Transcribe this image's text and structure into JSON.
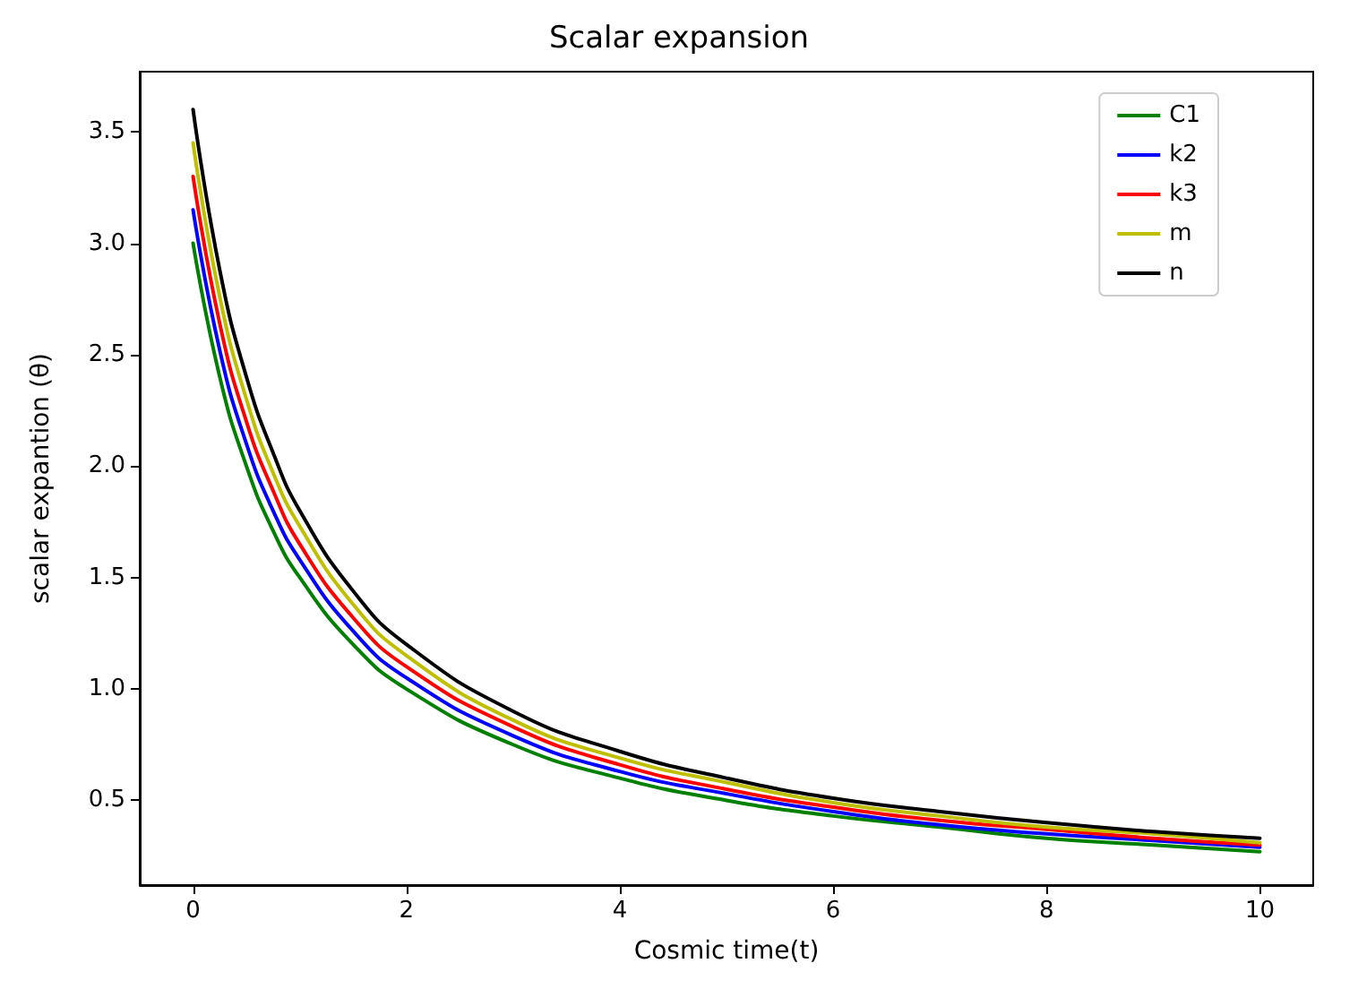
{
  "chart_data": {
    "type": "line",
    "title": "Scalar expansion",
    "xlabel": "Cosmic time(t)",
    "ylabel": "scalar expantion (θ)",
    "x": [
      0,
      0.25,
      0.5,
      0.75,
      1,
      1.5,
      2,
      3,
      4,
      5,
      6,
      7,
      8,
      9,
      10
    ],
    "series": [
      {
        "name": "C1",
        "color": "#008000",
        "values": [
          3.0,
          2.4,
          2.0,
          1.71,
          1.5,
          1.2,
          1.0,
          0.75,
          0.6,
          0.5,
          0.43,
          0.38,
          0.33,
          0.3,
          0.27
        ]
      },
      {
        "name": "k2",
        "color": "#0000ff",
        "values": [
          3.15,
          2.52,
          2.1,
          1.8,
          1.58,
          1.26,
          1.05,
          0.79,
          0.63,
          0.53,
          0.45,
          0.39,
          0.35,
          0.32,
          0.29
        ]
      },
      {
        "name": "k3",
        "color": "#ff0000",
        "values": [
          3.3,
          2.64,
          2.2,
          1.89,
          1.65,
          1.32,
          1.1,
          0.83,
          0.66,
          0.55,
          0.47,
          0.41,
          0.37,
          0.33,
          0.3
        ]
      },
      {
        "name": "m",
        "color": "#bfbf00",
        "values": [
          3.45,
          2.76,
          2.3,
          1.97,
          1.73,
          1.38,
          1.15,
          0.86,
          0.69,
          0.58,
          0.49,
          0.43,
          0.38,
          0.35,
          0.31
        ]
      },
      {
        "name": "n",
        "color": "#000000",
        "values": [
          3.6,
          2.88,
          2.4,
          2.06,
          1.8,
          1.44,
          1.2,
          0.9,
          0.72,
          0.6,
          0.51,
          0.45,
          0.4,
          0.36,
          0.33
        ]
      }
    ],
    "xlim": [
      -0.5,
      10.5
    ],
    "xticks": [
      0,
      2,
      4,
      6,
      8,
      10
    ],
    "ylim": [
      0.12,
      3.77
    ],
    "yticks": [
      0.5,
      {
        "value": 1,
        "label": "1.0"
      },
      1.5,
      {
        "value": 2,
        "label": "2.0"
      },
      2.5,
      {
        "value": 3,
        "label": "3.0"
      },
      3.5
    ],
    "grid": false,
    "legend": "top right",
    "marker": "none",
    "line_style": "solid"
  }
}
